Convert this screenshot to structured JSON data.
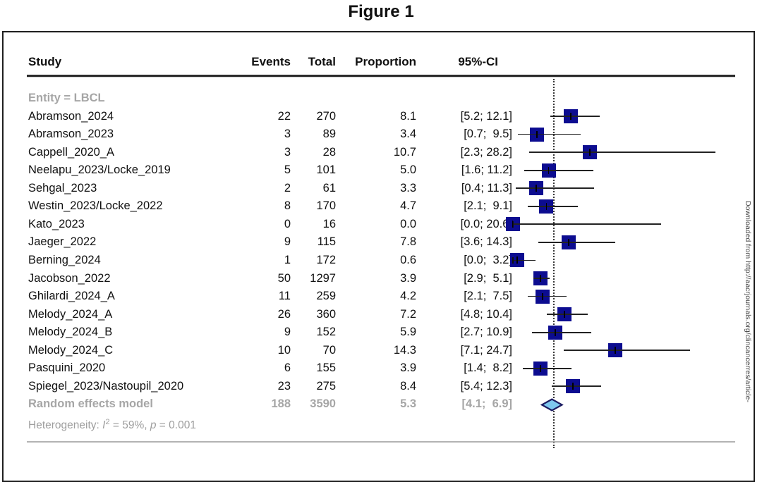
{
  "header": {
    "study": "Study",
    "events": "Events",
    "total": "Total",
    "proportion": "Proportion",
    "ci": "95%-CI"
  },
  "watermark": {
    "text": "Downloaded from http://aacrjournals.org/clincancerres/article-"
  },
  "colors": {
    "square": "#0c0c90",
    "ci_line": "#222222",
    "diamond_fill": "#7ec8ef",
    "diamond_stroke": "#1c1c62",
    "gray_text": "#a6a6a6",
    "dashed_line": "#3a3a3a"
  },
  "chart_data": {
    "type": "forest",
    "title": "Figure 1",
    "group_label": "Entity = LBCL",
    "columns": [
      "Study",
      "Events",
      "Total",
      "Proportion",
      "95%-CI"
    ],
    "x_unit": "proportion (%)",
    "x_range": [
      0,
      30
    ],
    "pooled_line_at": 5.3,
    "legend_position": "none",
    "grid": false,
    "studies": [
      {
        "study": "Abramson_2024",
        "events": "22",
        "total": "270",
        "proportion": "8.1",
        "ci_text": "[5.2; 12.1]",
        "est": 8.1,
        "lo": 5.2,
        "hi": 12.1
      },
      {
        "study": "Abramson_2023",
        "events": "3",
        "total": "89",
        "proportion": "3.4",
        "ci_text": "[0.7;  9.5]",
        "est": 3.4,
        "lo": 0.7,
        "hi": 9.5
      },
      {
        "study": "Cappell_2020_A",
        "events": "3",
        "total": "28",
        "proportion": "10.7",
        "ci_text": "[2.3; 28.2]",
        "est": 10.7,
        "lo": 2.3,
        "hi": 28.2
      },
      {
        "study": "Neelapu_2023/Locke_2019",
        "events": "5",
        "total": "101",
        "proportion": "5.0",
        "ci_text": "[1.6; 11.2]",
        "est": 5.0,
        "lo": 1.6,
        "hi": 11.2
      },
      {
        "study": "Sehgal_2023",
        "events": "2",
        "total": "61",
        "proportion": "3.3",
        "ci_text": "[0.4; 11.3]",
        "est": 3.3,
        "lo": 0.4,
        "hi": 11.3
      },
      {
        "study": "Westin_2023/Locke_2022",
        "events": "8",
        "total": "170",
        "proportion": "4.7",
        "ci_text": "[2.1;  9.1]",
        "est": 4.7,
        "lo": 2.1,
        "hi": 9.1
      },
      {
        "study": "Kato_2023",
        "events": "0",
        "total": "16",
        "proportion": "0.0",
        "ci_text": "[0.0; 20.6]",
        "est": 0.0,
        "lo": 0.0,
        "hi": 20.6
      },
      {
        "study": "Jaeger_2022",
        "events": "9",
        "total": "115",
        "proportion": "7.8",
        "ci_text": "[3.6; 14.3]",
        "est": 7.8,
        "lo": 3.6,
        "hi": 14.3
      },
      {
        "study": "Berning_2024",
        "events": "1",
        "total": "172",
        "proportion": "0.6",
        "ci_text": "[0.0;  3.2]",
        "est": 0.6,
        "lo": 0.0,
        "hi": 3.2
      },
      {
        "study": "Jacobson_2022",
        "events": "50",
        "total": "1297",
        "proportion": "3.9",
        "ci_text": "[2.9;  5.1]",
        "est": 3.9,
        "lo": 2.9,
        "hi": 5.1
      },
      {
        "study": "Ghilardi_2024_A",
        "events": "11",
        "total": "259",
        "proportion": "4.2",
        "ci_text": "[2.1;  7.5]",
        "est": 4.2,
        "lo": 2.1,
        "hi": 7.5
      },
      {
        "study": "Melody_2024_A",
        "events": "26",
        "total": "360",
        "proportion": "7.2",
        "ci_text": "[4.8; 10.4]",
        "est": 7.2,
        "lo": 4.8,
        "hi": 10.4
      },
      {
        "study": "Melody_2024_B",
        "events": "9",
        "total": "152",
        "proportion": "5.9",
        "ci_text": "[2.7; 10.9]",
        "est": 5.9,
        "lo": 2.7,
        "hi": 10.9
      },
      {
        "study": "Melody_2024_C",
        "events": "10",
        "total": "70",
        "proportion": "14.3",
        "ci_text": "[7.1; 24.7]",
        "est": 14.3,
        "lo": 7.1,
        "hi": 24.7
      },
      {
        "study": "Pasquini_2020",
        "events": "6",
        "total": "155",
        "proportion": "3.9",
        "ci_text": "[1.4;  8.2]",
        "est": 3.9,
        "lo": 1.4,
        "hi": 8.2
      },
      {
        "study": "Spiegel_2023/Nastoupil_2020",
        "events": "23",
        "total": "275",
        "proportion": "8.4",
        "ci_text": "[5.4; 12.3]",
        "est": 8.4,
        "lo": 5.4,
        "hi": 12.3
      }
    ],
    "summary": {
      "label": "Random effects model",
      "events": "188",
      "total": "3590",
      "proportion": "5.3",
      "ci_text": "[4.1;  6.9]",
      "est": 5.3,
      "lo": 4.1,
      "hi": 6.9
    },
    "heterogeneity_text": "Heterogeneity: I² = 59%, p = 0.001",
    "heterogeneity_parts": [
      {
        "text": "Heterogeneity: "
      },
      {
        "text": "I",
        "italic": true
      },
      {
        "text": "2",
        "sup": true
      },
      {
        "text": " = 59%, "
      },
      {
        "text": "p",
        "italic": true
      },
      {
        "text": " = 0.001"
      }
    ]
  }
}
